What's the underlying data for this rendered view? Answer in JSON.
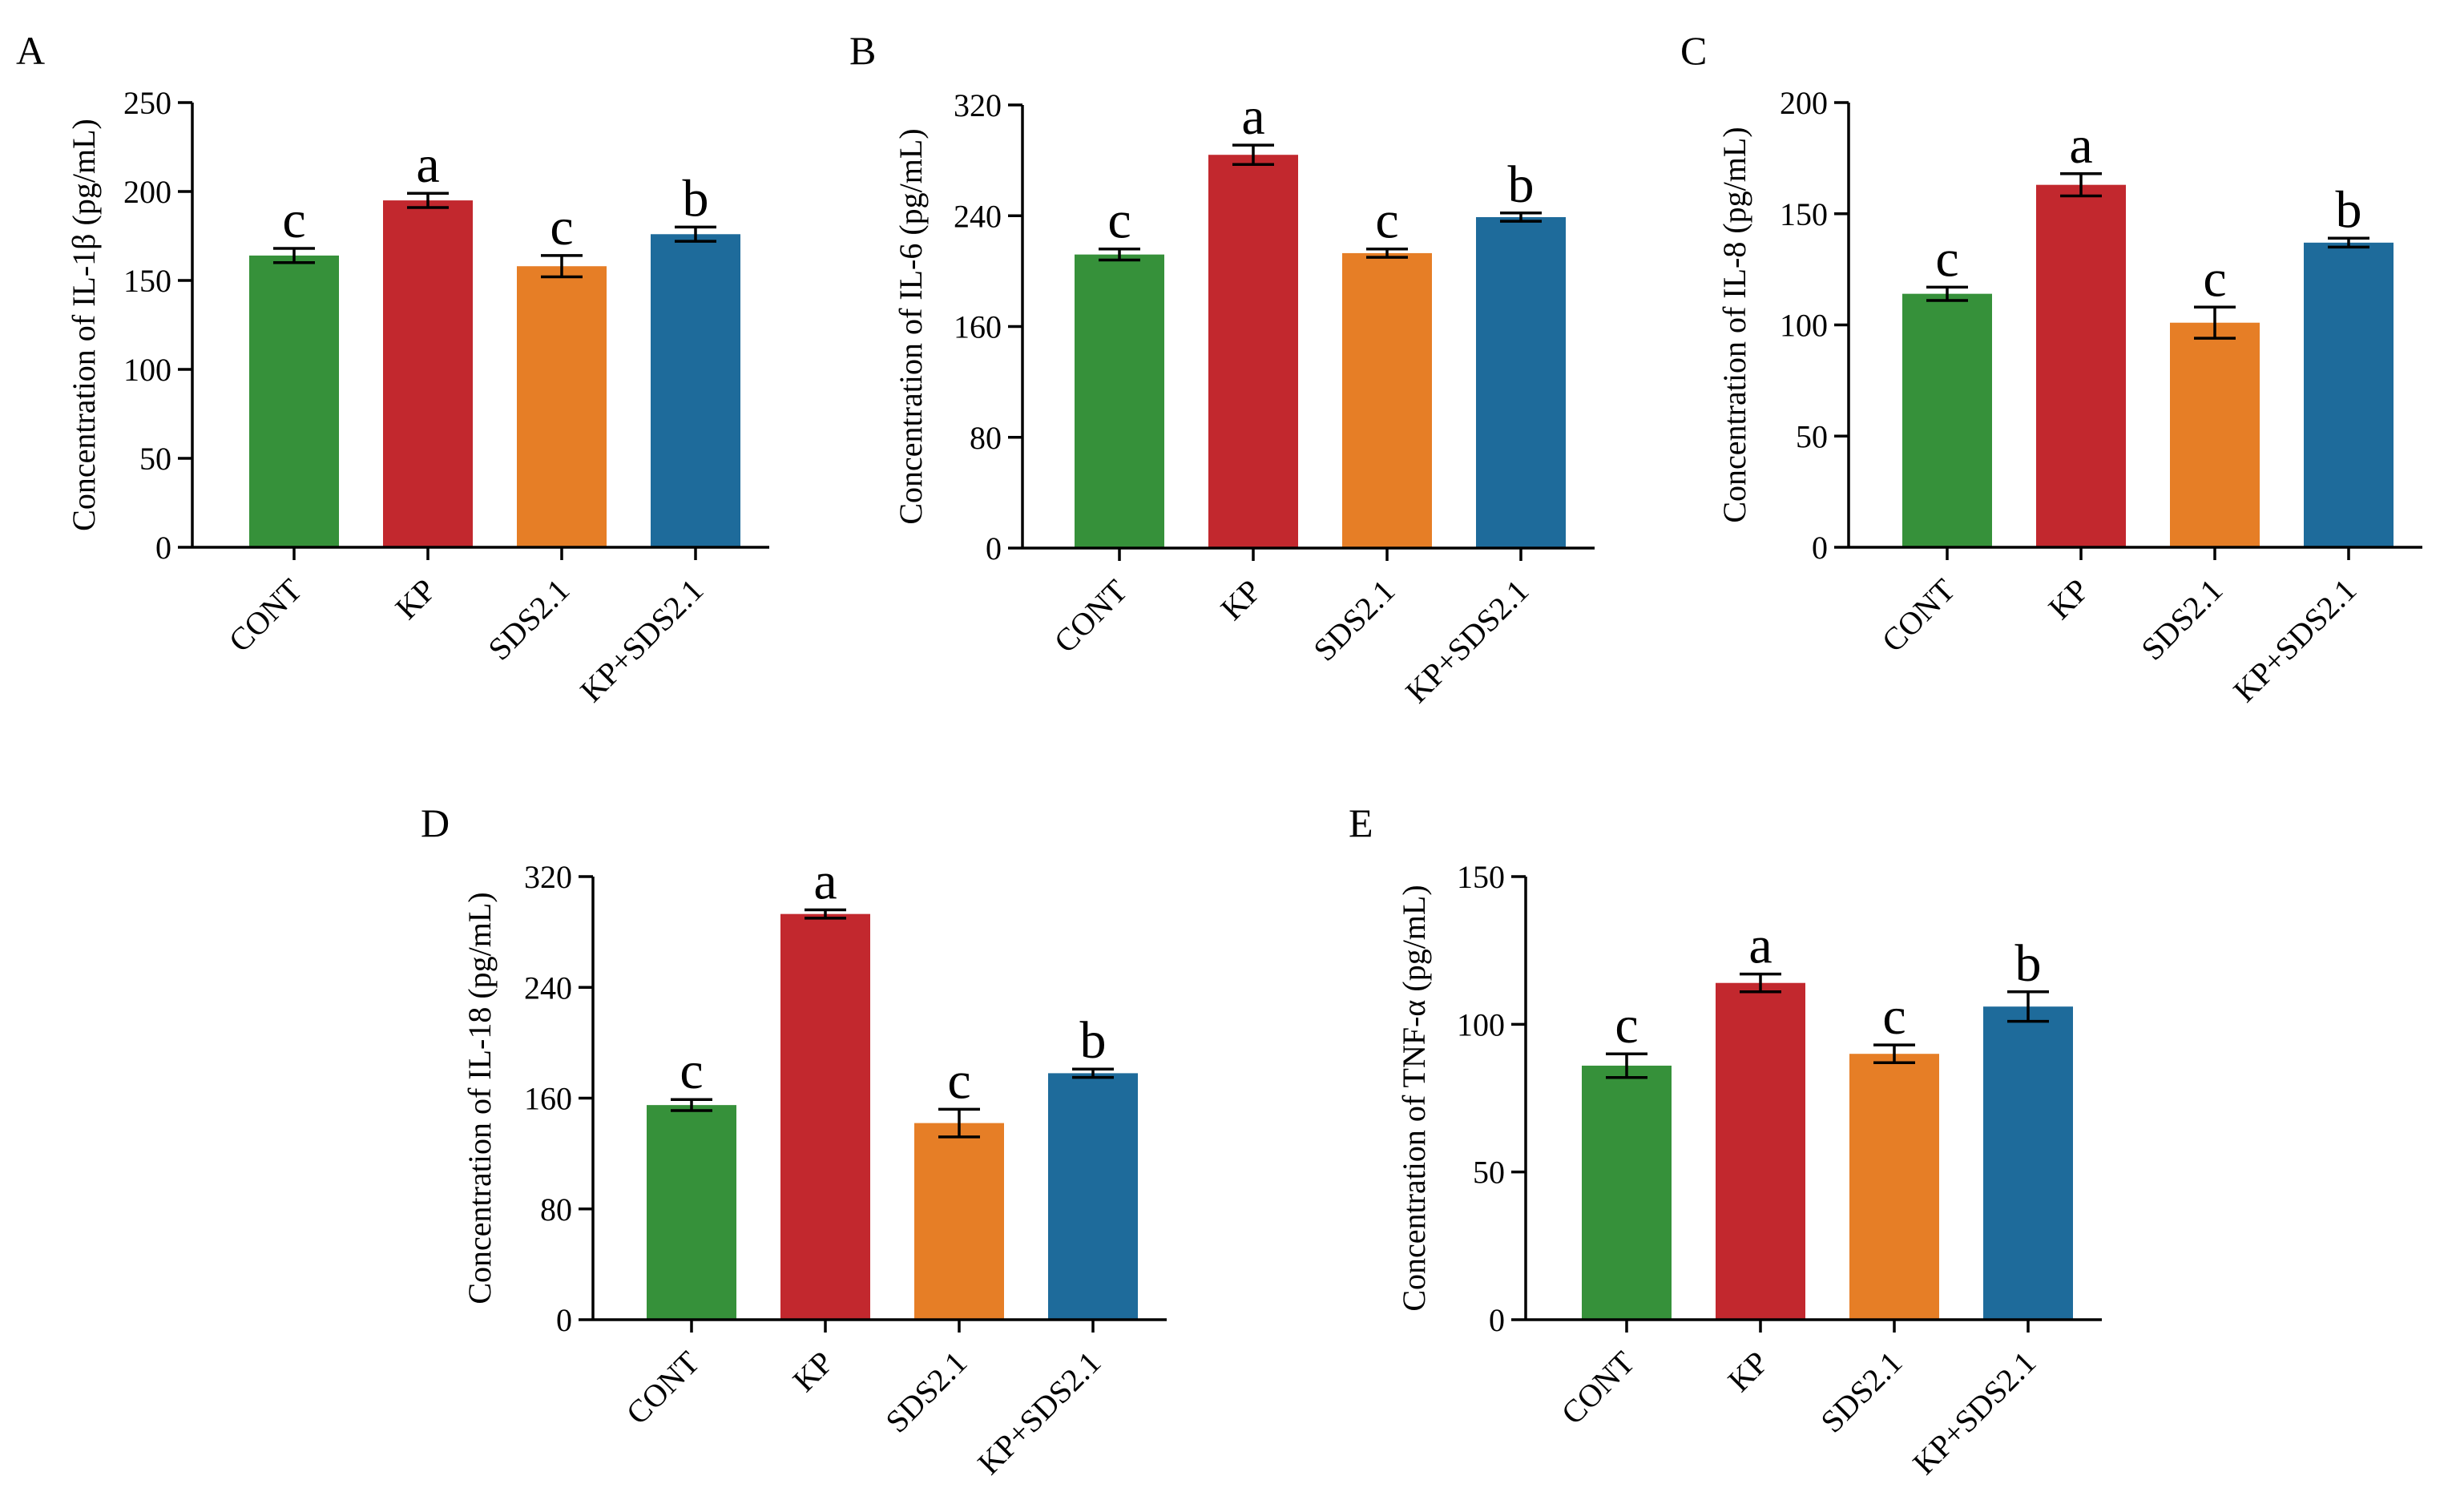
{
  "colors": {
    "CONT": "#36913a",
    "KP": "#c2282e",
    "SDS2.1": "#e67e26",
    "KP+SDS2.1": "#1e6b9b",
    "axis": "#000000"
  },
  "chart_data": [
    {
      "type": "bar",
      "panel": "A",
      "categories": [
        "CONT",
        "KP",
        "SDS2.1",
        "KP+SDS2.1"
      ],
      "values": [
        164,
        195,
        158,
        176
      ],
      "errors": [
        4,
        4,
        6,
        4
      ],
      "letters": [
        "c",
        "a",
        "c",
        "b"
      ],
      "ylabel": "Concentration of IL-1β (pg/mL)",
      "ylim": [
        0,
        250
      ],
      "yticks": [
        0,
        50,
        100,
        150,
        200,
        250
      ]
    },
    {
      "type": "bar",
      "panel": "B",
      "categories": [
        "CONT",
        "KP",
        "SDS2.1",
        "KP+SDS2.1"
      ],
      "values": [
        212,
        284,
        213,
        239
      ],
      "errors": [
        4,
        7,
        3,
        3
      ],
      "letters": [
        "c",
        "a",
        "c",
        "b"
      ],
      "ylabel": "Concentration of IL-6 (pg/mL)",
      "ylim": [
        0,
        320
      ],
      "yticks": [
        0,
        80,
        160,
        240,
        320
      ]
    },
    {
      "type": "bar",
      "panel": "C",
      "categories": [
        "CONT",
        "KP",
        "SDS2.1",
        "KP+SDS2.1"
      ],
      "values": [
        114,
        163,
        101,
        137
      ],
      "errors": [
        3,
        5,
        7,
        2
      ],
      "letters": [
        "c",
        "a",
        "c",
        "b"
      ],
      "ylabel": "Concentration of IL-8 (pg/mL)",
      "ylim": [
        0,
        200
      ],
      "yticks": [
        0,
        50,
        100,
        150,
        200
      ]
    },
    {
      "type": "bar",
      "panel": "D",
      "categories": [
        "CONT",
        "KP",
        "SDS2.1",
        "KP+SDS2.1"
      ],
      "values": [
        155,
        293,
        142,
        178
      ],
      "errors": [
        4,
        3,
        10,
        3
      ],
      "letters": [
        "c",
        "a",
        "c",
        "b"
      ],
      "ylabel": "Concentration of IL-18 (pg/mL)",
      "ylim": [
        0,
        320
      ],
      "yticks": [
        0,
        80,
        160,
        240,
        320
      ]
    },
    {
      "type": "bar",
      "panel": "E",
      "categories": [
        "CONT",
        "KP",
        "SDS2.1",
        "KP+SDS2.1"
      ],
      "values": [
        86,
        114,
        90,
        106
      ],
      "errors": [
        4,
        3,
        3,
        5
      ],
      "letters": [
        "c",
        "a",
        "c",
        "b"
      ],
      "ylabel": "Concentration of TNF-α (pg/mL)",
      "ylim": [
        0,
        150
      ],
      "yticks": [
        0,
        50,
        100,
        150
      ]
    }
  ]
}
